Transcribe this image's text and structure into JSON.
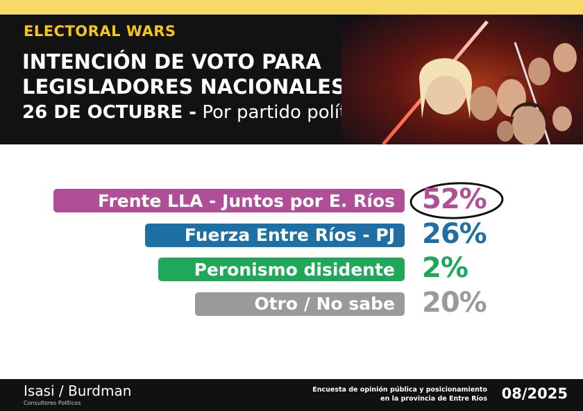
{
  "header": {
    "brand": "ELECTORAL WARS",
    "title_line1": "INTENCIÓN DE VOTO PARA",
    "title_line2": "LEGISLADORES NACIONALES",
    "date_label": "26 DE OCTUBRE -",
    "subtitle_rest": "Por partido político"
  },
  "colors": {
    "top_strip": "#f6d967",
    "header_bg": "#121212",
    "brand_yellow": "#f5c518",
    "footer_bg": "#111111"
  },
  "chart_data": {
    "type": "bar",
    "categories": [
      "Frente LLA - Juntos por E. Ríos",
      "Fuerza Entre Ríos - PJ",
      "Peronismo disidente",
      "Otro / No sabe"
    ],
    "values": [
      52,
      26,
      2,
      20
    ],
    "value_labels": [
      "52%",
      "26%",
      "2%",
      "20%"
    ],
    "colors": [
      "#b04f98",
      "#1e6fa3",
      "#1fa85a",
      "#9a9a9a"
    ],
    "highlighted": "Frente LLA - Juntos por E. Ríos",
    "ylim": [
      0,
      100
    ],
    "title": "",
    "xlabel": "",
    "ylabel": ""
  },
  "footer": {
    "logo_left": "Isasi",
    "logo_sep": "/",
    "logo_right": "Burdman",
    "logo_sub": "Consultores Políticos",
    "survey_line1": "Encuesta de opinión pública y posicionamiento",
    "survey_line2": "en la provincia de Entre Ríos",
    "date": "08/2025"
  }
}
